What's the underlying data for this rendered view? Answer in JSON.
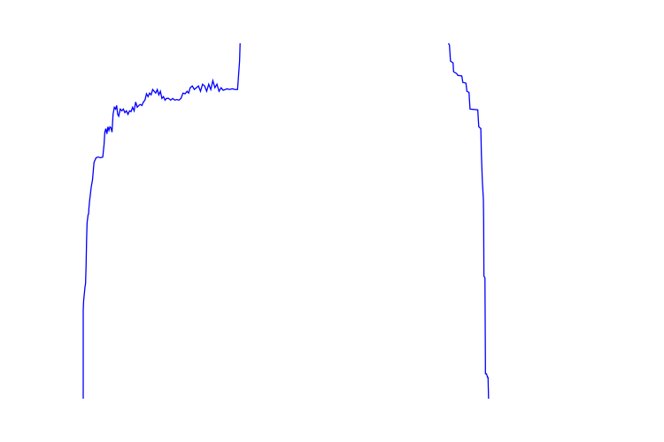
{
  "chart_data": {
    "type": "line",
    "title": "",
    "xlabel": "",
    "ylabel": "",
    "xlim": [
      0,
      100
    ],
    "ylim": [
      0,
      100
    ],
    "grid": false,
    "axes_visible": false,
    "line_color": "#0000ff",
    "series": [
      {
        "points": [
          [
            0.0,
            0.0
          ],
          [
            0.0,
            24.8
          ],
          [
            0.08,
            27.5
          ],
          [
            0.35,
            31.5
          ],
          [
            0.45,
            32.3
          ],
          [
            0.55,
            37.0
          ],
          [
            0.65,
            44.5
          ],
          [
            0.75,
            49.5
          ],
          [
            0.95,
            51.8
          ],
          [
            1.05,
            52.0
          ],
          [
            1.1,
            53.5
          ],
          [
            1.25,
            55.8
          ],
          [
            1.35,
            57.0
          ],
          [
            1.55,
            59.5
          ],
          [
            1.8,
            61.5
          ],
          [
            2.1,
            66.5
          ],
          [
            2.5,
            67.8
          ],
          [
            2.9,
            68.0
          ],
          [
            3.4,
            67.8
          ],
          [
            3.8,
            68.0
          ],
          [
            4.05,
            71.5
          ],
          [
            4.2,
            75.0
          ],
          [
            4.4,
            76.0
          ],
          [
            4.6,
            74.5
          ],
          [
            4.8,
            76.5
          ],
          [
            5.0,
            75.5
          ],
          [
            5.2,
            76.5
          ],
          [
            5.4,
            76.2
          ],
          [
            5.6,
            75.0
          ],
          [
            5.8,
            80.0
          ],
          [
            6.05,
            82.0
          ],
          [
            6.3,
            81.5
          ],
          [
            6.5,
            82.5
          ],
          [
            6.7,
            80.0
          ],
          [
            6.9,
            79.5
          ],
          [
            7.2,
            81.5
          ],
          [
            7.5,
            81.0
          ],
          [
            7.8,
            81.5
          ],
          [
            8.1,
            80.5
          ],
          [
            8.4,
            81.0
          ],
          [
            8.7,
            80.0
          ],
          [
            9.0,
            81.0
          ],
          [
            9.3,
            80.8
          ],
          [
            9.6,
            82.0
          ],
          [
            9.9,
            81.0
          ],
          [
            10.2,
            83.5
          ],
          [
            10.5,
            82.0
          ],
          [
            10.8,
            82.5
          ],
          [
            11.1,
            82.8
          ],
          [
            11.4,
            82.5
          ],
          [
            11.7,
            83.5
          ],
          [
            12.0,
            84.0
          ],
          [
            12.3,
            85.8
          ],
          [
            12.6,
            85.0
          ],
          [
            12.9,
            86.0
          ],
          [
            13.2,
            85.5
          ],
          [
            13.5,
            87.0
          ],
          [
            13.8,
            86.5
          ],
          [
            14.1,
            86.0
          ],
          [
            14.4,
            87.0
          ],
          [
            14.7,
            85.5
          ],
          [
            15.0,
            86.5
          ],
          [
            15.3,
            84.5
          ],
          [
            15.6,
            85.0
          ],
          [
            15.9,
            84.0
          ],
          [
            16.2,
            84.5
          ],
          [
            16.6,
            84.5
          ],
          [
            17.0,
            84.0
          ],
          [
            17.4,
            84.5
          ],
          [
            17.8,
            84.0
          ],
          [
            18.2,
            84.2
          ],
          [
            18.6,
            84.0
          ],
          [
            19.0,
            84.5
          ],
          [
            19.4,
            86.0
          ],
          [
            19.8,
            85.8
          ],
          [
            20.2,
            86.5
          ],
          [
            20.5,
            86.0
          ],
          [
            20.8,
            87.5
          ],
          [
            21.2,
            88.0
          ],
          [
            21.6,
            87.0
          ],
          [
            22.0,
            87.5
          ],
          [
            22.4,
            88.0
          ],
          [
            22.8,
            86.5
          ],
          [
            23.2,
            88.5
          ],
          [
            23.6,
            88.0
          ],
          [
            24.0,
            86.5
          ],
          [
            24.4,
            88.5
          ],
          [
            24.8,
            87.0
          ],
          [
            25.2,
            89.5
          ],
          [
            25.6,
            87.5
          ],
          [
            26.0,
            88.5
          ],
          [
            26.4,
            86.5
          ],
          [
            26.8,
            87.5
          ],
          [
            27.2,
            86.8
          ],
          [
            27.6,
            87.0
          ],
          [
            28.0,
            87.2
          ],
          [
            28.4,
            87.0
          ],
          [
            29.0,
            87.2
          ],
          [
            29.5,
            87.0
          ],
          [
            30.0,
            87.0
          ],
          [
            30.4,
            95.0
          ],
          [
            30.5,
            100.0
          ]
        ]
      },
      {
        "points": [
          [
            71.0,
            100.0
          ],
          [
            71.2,
            99.5
          ],
          [
            71.4,
            95.0
          ],
          [
            71.9,
            94.5
          ],
          [
            72.0,
            92.0
          ],
          [
            72.6,
            91.5
          ],
          [
            72.8,
            91.0
          ],
          [
            73.6,
            90.8
          ],
          [
            73.8,
            89.0
          ],
          [
            74.4,
            88.8
          ],
          [
            74.6,
            86.5
          ],
          [
            75.0,
            86.2
          ],
          [
            75.2,
            81.5
          ],
          [
            76.7,
            81.3
          ],
          [
            76.9,
            76.5
          ],
          [
            77.3,
            76.0
          ],
          [
            77.4,
            69.0
          ],
          [
            77.6,
            61.0
          ],
          [
            77.8,
            56.0
          ],
          [
            77.85,
            50.0
          ],
          [
            77.9,
            34.5
          ],
          [
            78.1,
            34.0
          ],
          [
            78.2,
            7.0
          ],
          [
            78.4,
            7.0
          ],
          [
            78.6,
            6.0
          ],
          [
            78.7,
            6.0
          ],
          [
            78.8,
            0.0
          ]
        ]
      }
    ]
  }
}
